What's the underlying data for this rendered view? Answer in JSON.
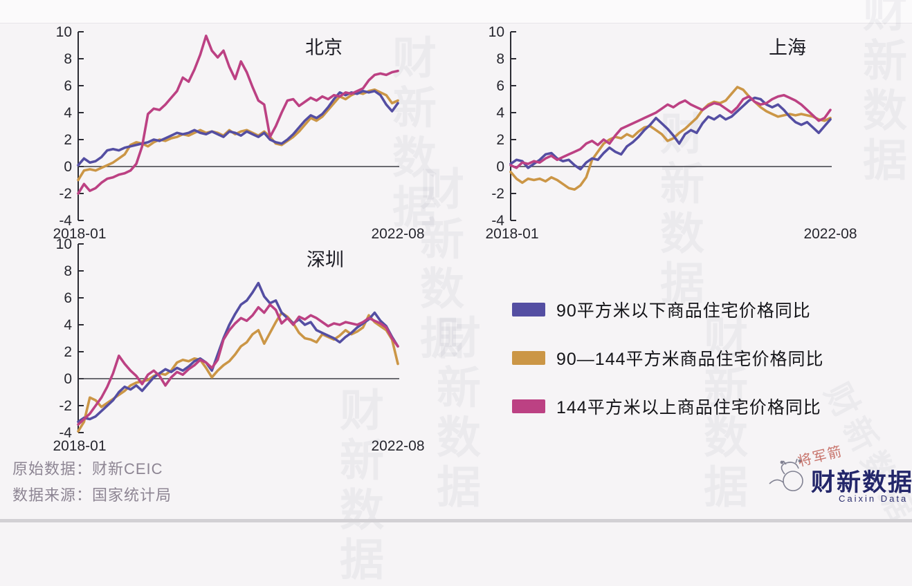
{
  "page": {
    "background": "#f6f4f6",
    "watermark_text": "财新数据"
  },
  "legend": {
    "items": [
      {
        "label": "90平方米以下商品住宅价格同比",
        "color": "#544ea2"
      },
      {
        "label": "90—144平方米商品住宅价格同比",
        "color": "#cb9646"
      },
      {
        "label": "144平方米以上商品住宅价格同比",
        "color": "#bc4183"
      }
    ]
  },
  "footer": {
    "line1": "原始数据：财新CEIC",
    "line2": "数据来源：国家统计局"
  },
  "logo": {
    "name": "财新数据",
    "subtitle": "Caixin Data",
    "red_watermark": "将军箭"
  },
  "chart_data": [
    {
      "type": "line",
      "title": "北京",
      "x_labels": [
        "2018-01",
        "2022-08"
      ],
      "ylim": [
        -4,
        10
      ],
      "yticks": [
        10,
        8,
        6,
        4,
        2,
        0,
        -2,
        -4
      ],
      "grid": false,
      "legend_position": "none",
      "series": [
        {
          "name": "90平方米以下商品住宅价格同比",
          "color": "#544ea2",
          "values": [
            0.1,
            0.6,
            0.3,
            0.4,
            0.7,
            1.2,
            1.3,
            1.2,
            1.4,
            1.5,
            1.6,
            1.7,
            1.8,
            2.0,
            1.9,
            2.1,
            2.3,
            2.5,
            2.4,
            2.5,
            2.7,
            2.5,
            2.4,
            2.6,
            2.4,
            2.2,
            2.6,
            2.5,
            2.3,
            2.6,
            2.4,
            2.2,
            2.5,
            2.0,
            1.8,
            1.7,
            2.0,
            2.4,
            2.9,
            3.4,
            3.8,
            3.6,
            3.9,
            4.4,
            5.0,
            5.5,
            5.3,
            5.5,
            5.4,
            5.6,
            5.5,
            5.6,
            5.3,
            4.6,
            4.1,
            4.7
          ]
        },
        {
          "name": "90—144平方米商品住宅价格同比",
          "color": "#cb9646",
          "values": [
            -1.0,
            -0.3,
            -0.2,
            -0.3,
            -0.1,
            0.1,
            0.3,
            0.6,
            0.9,
            1.6,
            1.8,
            1.7,
            1.5,
            1.8,
            2.0,
            1.9,
            2.1,
            2.2,
            2.4,
            2.3,
            2.5,
            2.7,
            2.5,
            2.6,
            2.5,
            2.3,
            2.7,
            2.4,
            2.6,
            2.7,
            2.5,
            2.3,
            2.6,
            2.2,
            1.7,
            1.6,
            1.9,
            2.2,
            2.6,
            3.1,
            3.6,
            3.4,
            3.7,
            4.2,
            4.7,
            5.2,
            5.0,
            5.3,
            5.5,
            5.4,
            5.6,
            5.7,
            5.5,
            5.3,
            4.7,
            4.9
          ]
        },
        {
          "name": "144平方米以上商品住宅价格同比",
          "color": "#bc4183",
          "values": [
            -2.0,
            -1.3,
            -1.8,
            -1.6,
            -1.2,
            -0.9,
            -0.8,
            -0.6,
            -0.5,
            -0.3,
            0.2,
            1.5,
            3.9,
            4.3,
            4.2,
            4.6,
            5.1,
            5.6,
            6.6,
            6.3,
            7.2,
            8.3,
            9.7,
            8.6,
            8.1,
            8.6,
            7.4,
            6.5,
            7.8,
            7.0,
            5.9,
            4.9,
            4.6,
            2.2,
            3.0,
            4.0,
            4.9,
            5.0,
            4.5,
            4.8,
            5.1,
            4.9,
            5.2,
            5.0,
            5.3,
            5.2,
            5.5,
            5.4,
            5.6,
            5.8,
            6.4,
            6.8,
            6.9,
            6.8,
            7.0,
            7.1
          ]
        }
      ]
    },
    {
      "type": "line",
      "title": "上海",
      "x_labels": [
        "2018-01",
        "2022-08"
      ],
      "ylim": [
        -4,
        10
      ],
      "yticks": [
        10,
        8,
        6,
        4,
        2,
        0,
        -2,
        -4
      ],
      "grid": false,
      "legend_position": "none",
      "series": [
        {
          "name": "90平方米以下商品住宅价格同比",
          "color": "#544ea2",
          "values": [
            0.2,
            0.5,
            0.4,
            -0.1,
            0.2,
            0.5,
            0.9,
            1.0,
            0.6,
            0.4,
            0.5,
            0.1,
            -0.2,
            0.3,
            0.6,
            0.5,
            1.0,
            1.4,
            1.1,
            0.9,
            1.5,
            1.8,
            2.2,
            2.7,
            3.1,
            3.6,
            3.2,
            2.8,
            2.3,
            1.7,
            2.4,
            2.7,
            2.5,
            3.2,
            3.7,
            3.5,
            3.8,
            3.5,
            3.7,
            4.1,
            4.5,
            4.9,
            5.1,
            5.0,
            4.6,
            4.4,
            4.6,
            4.2,
            3.7,
            3.3,
            3.1,
            3.3,
            2.9,
            2.5,
            3.0,
            3.5
          ]
        },
        {
          "name": "90—144平方米商品住宅价格同比",
          "color": "#cb9646",
          "values": [
            -0.4,
            -0.9,
            -1.2,
            -0.9,
            -1.0,
            -0.9,
            -1.1,
            -0.8,
            -1.0,
            -1.3,
            -1.6,
            -1.7,
            -1.4,
            -0.8,
            0.5,
            1.1,
            1.7,
            2.0,
            2.2,
            2.1,
            2.4,
            2.2,
            2.6,
            2.9,
            3.0,
            2.7,
            2.4,
            1.9,
            2.1,
            2.5,
            2.8,
            3.2,
            3.6,
            4.2,
            4.6,
            4.8,
            4.7,
            4.9,
            5.4,
            5.9,
            5.7,
            5.2,
            4.8,
            4.4,
            4.1,
            3.9,
            3.7,
            3.8,
            3.9,
            3.8,
            3.9,
            3.8,
            3.7,
            3.5,
            3.4,
            3.6
          ]
        },
        {
          "name": "144平方米以上商品住宅价格同比",
          "color": "#bc4183",
          "values": [
            0.1,
            -0.1,
            0.3,
            0.2,
            0.4,
            0.3,
            0.6,
            0.8,
            0.5,
            0.7,
            0.9,
            1.1,
            1.3,
            1.7,
            1.9,
            1.6,
            2.0,
            1.7,
            2.3,
            2.8,
            3.0,
            3.2,
            3.4,
            3.6,
            3.8,
            4.0,
            4.3,
            4.6,
            4.4,
            4.7,
            4.9,
            4.6,
            4.4,
            4.2,
            4.5,
            4.7,
            4.6,
            4.3,
            4.0,
            4.4,
            5.0,
            5.2,
            4.8,
            4.6,
            4.7,
            5.0,
            5.2,
            5.3,
            5.1,
            4.9,
            4.6,
            4.2,
            3.8,
            3.4,
            3.6,
            4.2
          ]
        }
      ]
    },
    {
      "type": "line",
      "title": "深圳",
      "x_labels": [
        "2018-01",
        "2022-08"
      ],
      "ylim": [
        -4,
        10
      ],
      "yticks": [
        10,
        8,
        6,
        4,
        2,
        0,
        -2,
        -4
      ],
      "grid": false,
      "legend_position": "none",
      "series": [
        {
          "name": "90平方米以下商品住宅价格同比",
          "color": "#544ea2",
          "values": [
            -3.2,
            -2.9,
            -3.0,
            -2.8,
            -2.4,
            -2.0,
            -1.6,
            -1.0,
            -0.6,
            -0.8,
            -0.5,
            -0.9,
            -0.4,
            0.1,
            0.4,
            0.7,
            0.5,
            0.8,
            0.6,
            0.9,
            1.3,
            1.5,
            1.2,
            0.6,
            1.8,
            3.0,
            4.0,
            4.8,
            5.5,
            5.8,
            6.4,
            7.1,
            6.1,
            5.6,
            5.8,
            4.9,
            4.5,
            4.1,
            4.4,
            4.0,
            4.2,
            3.6,
            3.4,
            3.2,
            3.0,
            2.7,
            3.1,
            3.4,
            3.8,
            4.1,
            4.4,
            4.9,
            4.3,
            3.9,
            3.1,
            2.4
          ]
        },
        {
          "name": "90—144平方米商品住宅价格同比",
          "color": "#cb9646",
          "values": [
            -3.9,
            -3.2,
            -1.4,
            -1.6,
            -2.1,
            -1.8,
            -1.5,
            -1.2,
            -0.9,
            -0.5,
            -0.3,
            -0.2,
            -0.1,
            0.2,
            0.4,
            0.3,
            0.6,
            1.2,
            1.4,
            1.3,
            1.5,
            1.4,
            0.8,
            0.1,
            0.6,
            1.0,
            1.3,
            1.8,
            2.4,
            2.7,
            3.3,
            3.6,
            2.6,
            3.4,
            4.2,
            4.9,
            4.6,
            4.1,
            3.4,
            3.0,
            2.9,
            2.7,
            3.3,
            3.1,
            2.9,
            3.2,
            3.6,
            3.3,
            3.5,
            3.8,
            4.7,
            4.2,
            3.9,
            3.6,
            2.9,
            1.1
          ]
        },
        {
          "name": "144平方米以上商品住宅价格同比",
          "color": "#bc4183",
          "values": [
            -3.4,
            -3.0,
            -2.6,
            -2.0,
            -1.4,
            -0.6,
            0.4,
            1.7,
            1.1,
            0.6,
            0.2,
            -0.4,
            0.3,
            0.6,
            0.2,
            -0.5,
            0.1,
            0.5,
            0.3,
            0.7,
            1.0,
            1.4,
            1.2,
            0.8,
            1.4,
            2.9,
            3.6,
            4.1,
            4.5,
            4.3,
            4.7,
            5.3,
            4.9,
            5.5,
            5.1,
            4.1,
            4.5,
            4.0,
            4.6,
            4.4,
            4.7,
            4.5,
            4.2,
            3.9,
            4.1,
            4.0,
            4.2,
            4.1,
            4.0,
            4.2,
            4.5,
            4.3,
            4.1,
            3.8,
            3.0,
            2.4
          ]
        }
      ]
    }
  ]
}
